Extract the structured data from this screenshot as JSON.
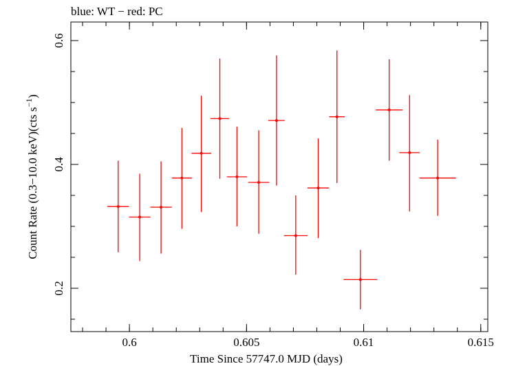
{
  "chart_data": {
    "type": "scatter",
    "title": "blue: WT − red: PC",
    "xlabel": "Time Since 57747.0 MJD (days)",
    "ylabel_main": "Count Rate (0.3−10.0 keV)(cts s",
    "ylabel_sup": "−1",
    "ylabel_close": ")",
    "xlim": [
      0.5975,
      0.6153
    ],
    "ylim": [
      0.13,
      0.63
    ],
    "xticks": [
      {
        "value": 0.6,
        "label": "0.6"
      },
      {
        "value": 0.605,
        "label": "0.605"
      },
      {
        "value": 0.61,
        "label": "0.61"
      },
      {
        "value": 0.615,
        "label": "0.615"
      }
    ],
    "x_minor_step": 0.001,
    "yticks": [
      {
        "value": 0.2,
        "label": "0.2"
      },
      {
        "value": 0.4,
        "label": "0.4"
      },
      {
        "value": 0.6,
        "label": "0.6"
      }
    ],
    "y_minor_step": 0.05,
    "series": [
      {
        "color": "#ff0000",
        "points": [
          {
            "x": 0.59952,
            "xerr": 0.00046,
            "y": 0.332,
            "ylo": 0.258,
            "yhi": 0.406
          },
          {
            "x": 0.60044,
            "xerr": 0.00046,
            "y": 0.315,
            "ylo": 0.244,
            "yhi": 0.385
          },
          {
            "x": 0.60135,
            "xerr": 0.00046,
            "y": 0.331,
            "ylo": 0.256,
            "yhi": 0.405
          },
          {
            "x": 0.60224,
            "xerr": 0.00043,
            "y": 0.378,
            "ylo": 0.296,
            "yhi": 0.459
          },
          {
            "x": 0.60307,
            "xerr": 0.00042,
            "y": 0.418,
            "ylo": 0.323,
            "yhi": 0.511
          },
          {
            "x": 0.60386,
            "xerr": 0.0004,
            "y": 0.474,
            "ylo": 0.377,
            "yhi": 0.571
          },
          {
            "x": 0.60459,
            "xerr": 0.00043,
            "y": 0.38,
            "ylo": 0.3,
            "yhi": 0.461
          },
          {
            "x": 0.60552,
            "xerr": 0.00045,
            "y": 0.371,
            "ylo": 0.288,
            "yhi": 0.455
          },
          {
            "x": 0.60628,
            "xerr": 0.00035,
            "y": 0.471,
            "ylo": 0.366,
            "yhi": 0.576
          },
          {
            "x": 0.6071,
            "xerr": 0.0005,
            "y": 0.285,
            "ylo": 0.222,
            "yhi": 0.35
          },
          {
            "x": 0.60806,
            "xerr": 0.00046,
            "y": 0.362,
            "ylo": 0.281,
            "yhi": 0.442
          },
          {
            "x": 0.60886,
            "xerr": 0.00033,
            "y": 0.477,
            "ylo": 0.37,
            "yhi": 0.584
          },
          {
            "x": 0.60986,
            "xerr": 0.00072,
            "y": 0.214,
            "ylo": 0.166,
            "yhi": 0.262
          },
          {
            "x": 0.61109,
            "xerr": 0.00057,
            "y": 0.488,
            "ylo": 0.406,
            "yhi": 0.57
          },
          {
            "x": 0.61196,
            "xerr": 0.00044,
            "y": 0.419,
            "ylo": 0.324,
            "yhi": 0.512
          },
          {
            "x": 0.61316,
            "xerr": 0.00078,
            "y": 0.378,
            "ylo": 0.317,
            "yhi": 0.44
          }
        ]
      }
    ],
    "grid": false,
    "legend": "none"
  }
}
